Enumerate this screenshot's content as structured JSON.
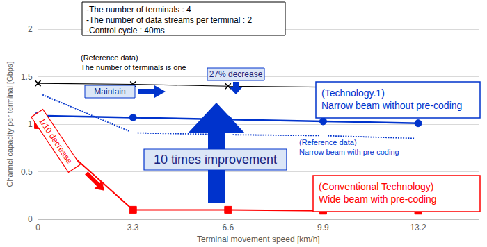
{
  "chart_data": {
    "type": "line",
    "x_label": "Terminal movement speed [km/h]",
    "y_label": "Channel capacity per terminal [Gbps]",
    "x": [
      0,
      3.3,
      6.6,
      9.9,
      13.2
    ],
    "xlim": [
      0,
      15.3
    ],
    "xticks": [
      0,
      3.3,
      6.6,
      9.9,
      13.2
    ],
    "ylim": [
      0,
      2
    ],
    "yticks": [
      0,
      0.5,
      1,
      1.5,
      2
    ],
    "grid": true,
    "series": [
      {
        "name": "(Reference data)\nThe number of terminals is one",
        "color": "#000000",
        "marker": "x",
        "line_style": "solid",
        "values": [
          1.43,
          1.42,
          1.4,
          1.39,
          1.37
        ]
      },
      {
        "name": "(Technology.1)\nNarrow beam without pre-coding",
        "color": "#0033cc",
        "marker": "circle",
        "line_style": "solid",
        "values": [
          1.09,
          1.07,
          1.05,
          1.03,
          1.01
        ]
      },
      {
        "name": "(Reference data)\nNarrow beam with pre-coding",
        "color": "#0033cc",
        "marker": "open_circle",
        "line_style": "dotted",
        "values": [
          1.33,
          0.91,
          0.89,
          0.88,
          0.85
        ]
      },
      {
        "name": "(Conventional Technology)\nWide beam with pre-coding",
        "color": "#ff0000",
        "marker": "square",
        "line_style": "solid",
        "values": [
          0.99,
          0.1,
          0.1,
          0.09,
          0.09
        ]
      }
    ],
    "annotations": [
      "-The number of terminals : 4",
      "-The number of data streams per terminal : 2",
      "-Control cycle : 40ms",
      "Maintain",
      "27% decrease",
      "10 times improvement",
      "1/10 decrease"
    ]
  }
}
